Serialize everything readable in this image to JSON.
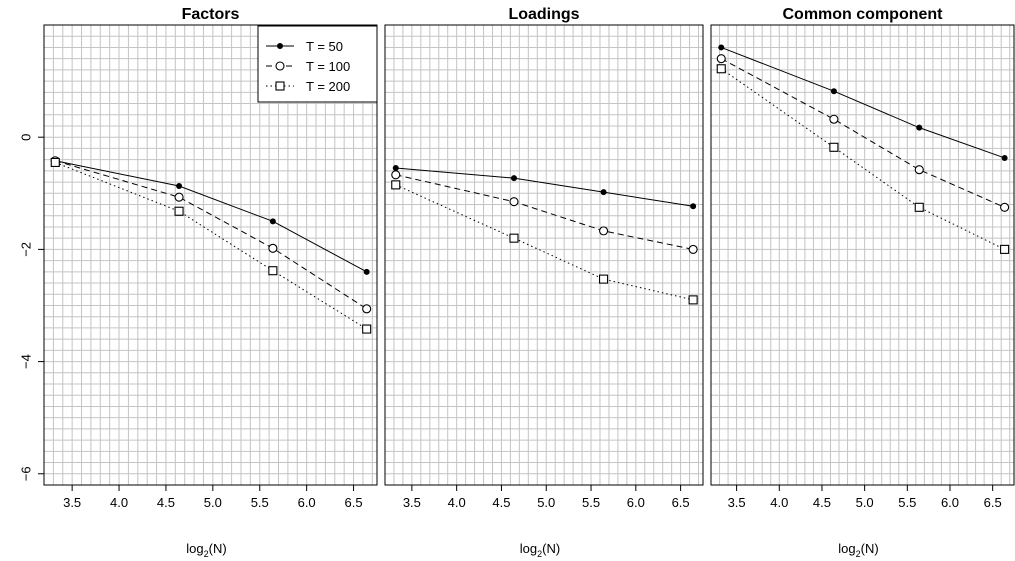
{
  "chart_data": [
    {
      "type": "line",
      "title": "Factors",
      "xlabel": "log",
      "xlabel_sub": "2",
      "xlabel_tail": "(N)",
      "ylabel": "",
      "x": [
        3.32,
        4.64,
        5.64,
        6.64
      ],
      "xlim": [
        3.2,
        6.75
      ],
      "ylim": [
        -6.2,
        2.0
      ],
      "xticks": [
        "3.5",
        "4.0",
        "4.5",
        "5.0",
        "5.5",
        "6.0",
        "6.5"
      ],
      "yticks": [
        "0",
        "−2",
        "−4",
        "−6"
      ],
      "grid": true,
      "legend_position": "top-right",
      "series": [
        {
          "name": "T = 50",
          "values": [
            -0.42,
            -0.87,
            -1.5,
            -2.4
          ]
        },
        {
          "name": "T = 100",
          "values": [
            -0.42,
            -1.07,
            -1.98,
            -3.06
          ]
        },
        {
          "name": "T = 200",
          "values": [
            -0.45,
            -1.32,
            -2.38,
            -3.42
          ]
        }
      ]
    },
    {
      "type": "line",
      "title": "Loadings",
      "xlabel": "log",
      "xlabel_sub": "2",
      "xlabel_tail": "(N)",
      "ylabel": "",
      "x": [
        3.32,
        4.64,
        5.64,
        6.64
      ],
      "xlim": [
        3.2,
        6.75
      ],
      "ylim": [
        -6.2,
        2.0
      ],
      "xticks": [
        "3.5",
        "4.0",
        "4.5",
        "5.0",
        "5.5",
        "6.0",
        "6.5"
      ],
      "grid": true,
      "series": [
        {
          "name": "T = 50",
          "values": [
            -0.55,
            -0.73,
            -0.98,
            -1.23
          ]
        },
        {
          "name": "T = 100",
          "values": [
            -0.67,
            -1.15,
            -1.67,
            -2.0
          ]
        },
        {
          "name": "T = 200",
          "values": [
            -0.85,
            -1.8,
            -2.53,
            -2.9
          ]
        }
      ]
    },
    {
      "type": "line",
      "title": "Common component",
      "xlabel": "log",
      "xlabel_sub": "2",
      "xlabel_tail": "(N)",
      "ylabel": "",
      "x": [
        3.32,
        4.64,
        5.64,
        6.64
      ],
      "xlim": [
        3.2,
        6.75
      ],
      "ylim": [
        -6.2,
        2.0
      ],
      "xticks": [
        "3.5",
        "4.0",
        "4.5",
        "5.0",
        "5.5",
        "6.0",
        "6.5"
      ],
      "grid": true,
      "series": [
        {
          "name": "T = 50",
          "values": [
            1.6,
            0.82,
            0.17,
            -0.37
          ]
        },
        {
          "name": "T = 100",
          "values": [
            1.4,
            0.32,
            -0.58,
            -1.25
          ]
        },
        {
          "name": "T = 200",
          "values": [
            1.22,
            -0.18,
            -1.25,
            -2.0
          ]
        }
      ]
    }
  ],
  "legend": {
    "entries": [
      "T = 50",
      "T = 100",
      "T = 200"
    ]
  }
}
